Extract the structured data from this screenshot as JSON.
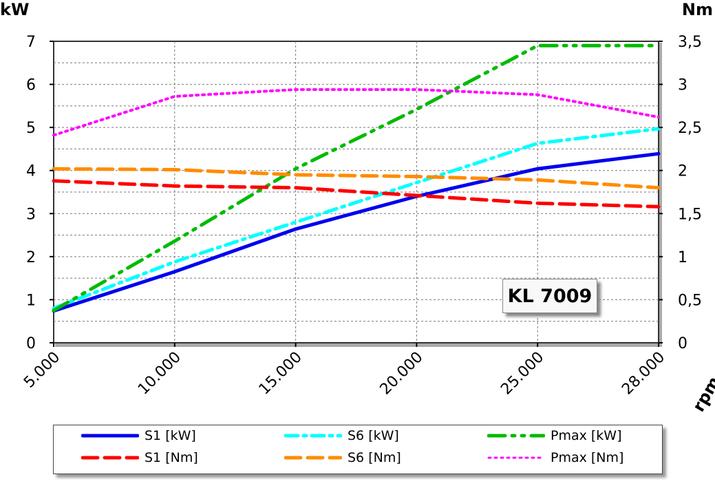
{
  "chart_data": {
    "type": "line",
    "categories": [
      "5.000",
      "10.000",
      "15.000",
      "20.000",
      "25.000",
      "28.000"
    ],
    "xlabel": "rpm",
    "ylabel_left": "kW",
    "ylabel_right": "Nm",
    "ylim_left": [
      0,
      7
    ],
    "ylim_right": [
      0,
      3.5
    ],
    "yticks_left": [
      "0",
      "1",
      "2",
      "3",
      "4",
      "5",
      "6",
      "7"
    ],
    "yticks_right": [
      "0",
      "0,5",
      "1",
      "1,5",
      "2",
      "2,5",
      "3",
      "3,5"
    ],
    "grid": true,
    "annotation": "KL 7009",
    "legend_position": "bottom",
    "series": [
      {
        "name": "S1 [kW]",
        "axis": "left",
        "color": "#0000ee",
        "style": "solid",
        "values": [
          0.74,
          1.65,
          2.64,
          3.4,
          4.04,
          4.39
        ]
      },
      {
        "name": "S6 [kW]",
        "axis": "left",
        "color": "#00ffff",
        "style": "dashdot",
        "values": [
          0.8,
          1.88,
          2.8,
          3.72,
          4.63,
          4.97
        ]
      },
      {
        "name": "Pmax [kW]",
        "axis": "left",
        "color": "#00bb00",
        "style": "dashdotdot",
        "values": [
          0.75,
          2.36,
          4.04,
          5.42,
          6.9,
          6.9
        ]
      },
      {
        "name": "S1 [Nm]",
        "axis": "right",
        "color": "#ff0000",
        "style": "dash",
        "values": [
          1.88,
          1.82,
          1.8,
          1.71,
          1.62,
          1.58
        ]
      },
      {
        "name": "S6 [Nm]",
        "axis": "right",
        "color": "#ff8c00",
        "style": "dash",
        "values": [
          2.02,
          2.01,
          1.95,
          1.93,
          1.89,
          1.8
        ]
      },
      {
        "name": "Pmax [Nm]",
        "axis": "right",
        "color": "#ff00ff",
        "style": "dot",
        "values": [
          2.41,
          2.86,
          2.94,
          2.94,
          2.88,
          2.62
        ]
      }
    ]
  }
}
